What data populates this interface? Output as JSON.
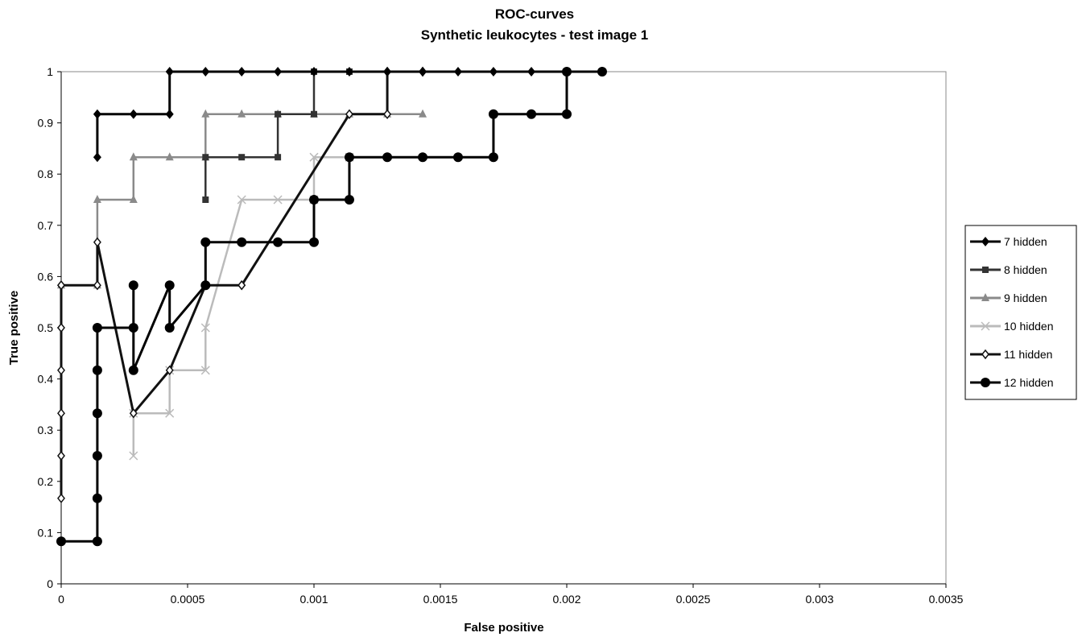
{
  "chart_data": {
    "type": "line",
    "title": "ROC-curves",
    "subtitle": "Synthetic leukocytes - test image 1",
    "xlabel": "False positive",
    "ylabel": "True positive",
    "xlim": [
      0,
      0.0035
    ],
    "ylim": [
      0,
      1
    ],
    "xticks": [
      0,
      0.0005,
      0.001,
      0.0015,
      0.002,
      0.0025,
      0.003,
      0.0035
    ],
    "xtick_labels": [
      "0",
      "0.0005",
      "0.001",
      "0.0015",
      "0.002",
      "0.0025",
      "0.003",
      "0.0035"
    ],
    "yticks": [
      0,
      0.1,
      0.2,
      0.3,
      0.4,
      0.5,
      0.6,
      0.7,
      0.8,
      0.9,
      1
    ],
    "ytick_labels": [
      "0",
      "0.1",
      "0.2",
      "0.3",
      "0.4",
      "0.5",
      "0.6",
      "0.7",
      "0.8",
      "0.9",
      "1"
    ],
    "grid": false,
    "legend_position": "right",
    "series": [
      {
        "name": "7 hidden",
        "color": "#000000",
        "marker": "diamond",
        "x": [
          0.000143,
          0.000143,
          0.000286,
          0.000429,
          0.000429,
          0.000571,
          0.000714,
          0.000857,
          0.001,
          0.00114,
          0.00129,
          0.00143,
          0.00157,
          0.00171,
          0.00186,
          0.002,
          0.00214
        ],
        "y": [
          0.833,
          0.917,
          0.917,
          0.917,
          1,
          1,
          1,
          1,
          1,
          1,
          1,
          1,
          1,
          1,
          1,
          1,
          1
        ]
      },
      {
        "name": "8 hidden",
        "color": "#333333",
        "marker": "square",
        "x": [
          0.000571,
          0.000571,
          0.000714,
          0.000857,
          0.000857,
          0.001,
          0.001,
          0.00114
        ],
        "y": [
          0.75,
          0.833,
          0.833,
          0.833,
          0.917,
          0.917,
          1,
          1
        ]
      },
      {
        "name": "9 hidden",
        "color": "#8a8a8a",
        "marker": "triangle",
        "x": [
          0,
          0.000143,
          0.000143,
          0.000286,
          0.000286,
          0.000429,
          0.000571,
          0.000571,
          0.000714,
          0.000857,
          0.001,
          0.00114,
          0.00129,
          0.00143
        ],
        "y": [
          0.583,
          0.583,
          0.75,
          0.75,
          0.833,
          0.833,
          0.833,
          0.917,
          0.917,
          0.917,
          0.917,
          0.917,
          0.917,
          0.917
        ]
      },
      {
        "name": "10 hidden",
        "color": "#bbbbbb",
        "marker": "x",
        "x": [
          0.000286,
          0.000286,
          0.000429,
          0.000429,
          0.000571,
          0.000571,
          0.000714,
          0.000857,
          0.001,
          0.001,
          0.00114
        ],
        "y": [
          0.25,
          0.333,
          0.333,
          0.417,
          0.417,
          0.5,
          0.75,
          0.75,
          0.75,
          0.833,
          0.833
        ]
      },
      {
        "name": "11 hidden",
        "color": "#111111",
        "marker": "open-diamond",
        "x": [
          0,
          0,
          0,
          0,
          0,
          0,
          0,
          0.000143,
          0.000143,
          0.000286,
          0.000429,
          0.000571,
          0.000714,
          0.000714,
          0.00114,
          0.00129,
          0.00129,
          0.00143,
          0.00143
        ],
        "y": [
          0.167,
          0.25,
          0.333,
          0.417,
          0.5,
          0.583,
          0.583,
          0.583,
          0.667,
          0.333,
          0.417,
          0.583,
          0.583,
          0.583,
          0.917,
          0.917,
          1,
          1,
          1
        ]
      },
      {
        "name": "12 hidden",
        "color": "#000000",
        "marker": "circle",
        "x": [
          0,
          0.000143,
          0.000143,
          0.000143,
          0.000143,
          0.000143,
          0.000143,
          0.000286,
          0.000286,
          0.000286,
          0.000429,
          0.000429,
          0.000571,
          0.000571,
          0.000714,
          0.000857,
          0.001,
          0.001,
          0.00114,
          0.00114,
          0.00129,
          0.00143,
          0.00157,
          0.00171,
          0.00171,
          0.00186,
          0.002,
          0.002,
          0.00214
        ],
        "y": [
          0.083,
          0.083,
          0.167,
          0.25,
          0.333,
          0.417,
          0.5,
          0.5,
          0.583,
          0.417,
          0.583,
          0.5,
          0.583,
          0.667,
          0.667,
          0.667,
          0.667,
          0.75,
          0.75,
          0.833,
          0.833,
          0.833,
          0.833,
          0.833,
          0.917,
          0.917,
          0.917,
          1,
          1
        ]
      }
    ]
  }
}
